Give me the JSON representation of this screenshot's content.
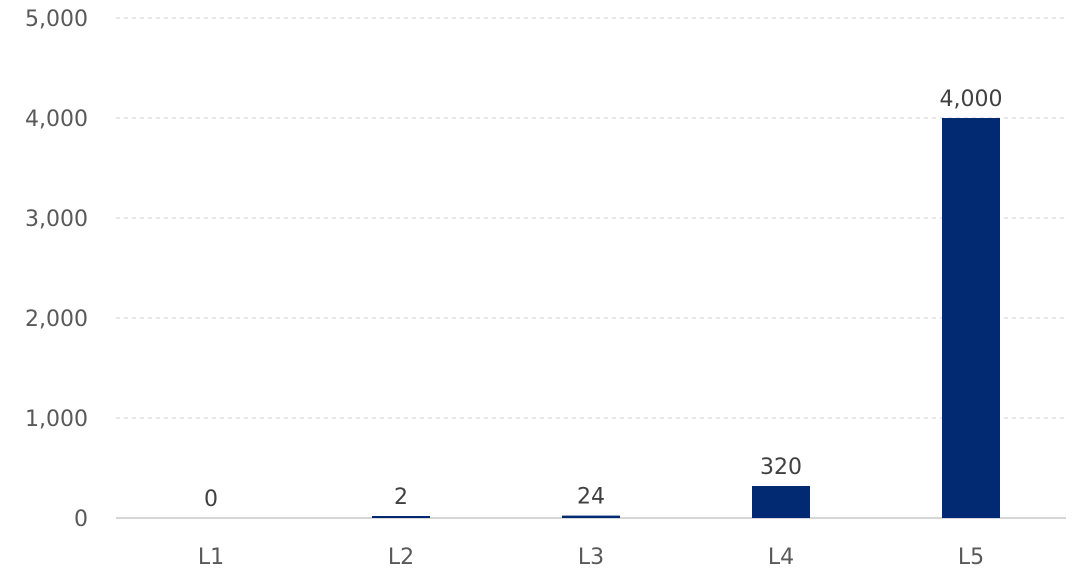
{
  "chart_data": {
    "type": "bar",
    "title": "",
    "xlabel": "",
    "ylabel": "",
    "categories": [
      "L1",
      "L2",
      "L3",
      "L4",
      "L5"
    ],
    "values": [
      0,
      2,
      24,
      320,
      4000
    ],
    "data_labels": [
      "0",
      "2",
      "24",
      "320",
      "4,000"
    ],
    "ylim": [
      0,
      5000
    ],
    "yticks": [
      0,
      1000,
      2000,
      3000,
      4000,
      5000
    ],
    "ytick_labels": [
      "0",
      "1,000",
      "2,000",
      "3,000",
      "4,000",
      "5,000"
    ],
    "grid": "horizontal-dashed",
    "legend": "none",
    "colors": {
      "bar": "#012A73",
      "grid": "#D0D0D0",
      "axis": "#C8C8C8",
      "text": "#595959",
      "label": "#404040"
    }
  }
}
